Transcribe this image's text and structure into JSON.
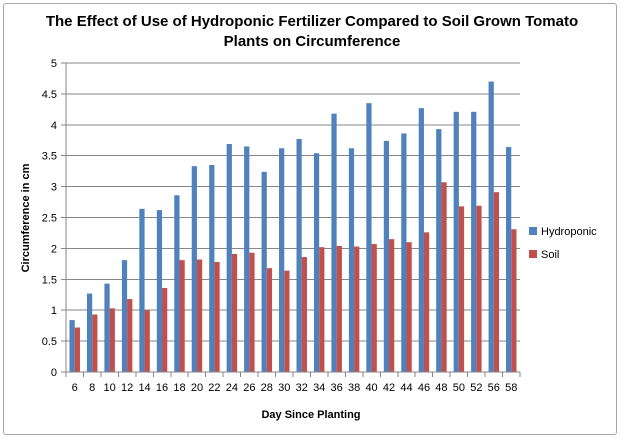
{
  "chart_data": {
    "type": "bar",
    "title": "The Effect of Use of Hydroponic Fertilizer Compared to Soil Grown Tomato Plants on Circumference",
    "title_lines": [
      "The Effect of Use of Hydroponic Fertilizer Compared to Soil Grown Tomato",
      "Plants on Circumference"
    ],
    "xlabel": "Day Since Planting",
    "ylabel": "Circumference in cm",
    "ylim": [
      0,
      5
    ],
    "yticks": [
      "0",
      "0.5",
      "1",
      "1.5",
      "2",
      "2.5",
      "3",
      "3.5",
      "4",
      "4.5",
      "5"
    ],
    "grid": true,
    "legend_position": "right",
    "categories": [
      "6",
      "8",
      "10",
      "12",
      "14",
      "16",
      "18",
      "20",
      "22",
      "24",
      "26",
      "28",
      "30",
      "32",
      "34",
      "36",
      "38",
      "40",
      "42",
      "44",
      "46",
      "48",
      "50",
      "52",
      "56",
      "58"
    ],
    "series": [
      {
        "name": "Hydroponic",
        "color": "#4f81bd",
        "values": [
          0.84,
          1.27,
          1.43,
          1.81,
          2.64,
          2.62,
          2.86,
          3.33,
          3.35,
          3.69,
          3.65,
          3.24,
          3.62,
          3.77,
          3.54,
          4.18,
          3.62,
          4.35,
          3.74,
          3.86,
          4.27,
          3.93,
          4.21,
          4.21,
          4.7,
          3.64
        ]
      },
      {
        "name": "Soil",
        "color": "#c0504d",
        "values": [
          0.72,
          0.93,
          1.03,
          1.18,
          1.0,
          1.36,
          1.81,
          1.82,
          1.78,
          1.91,
          1.93,
          1.68,
          1.64,
          1.86,
          2.02,
          2.04,
          2.03,
          2.07,
          2.15,
          2.1,
          2.26,
          3.07,
          2.68,
          2.69,
          2.91,
          2.31
        ]
      }
    ]
  }
}
